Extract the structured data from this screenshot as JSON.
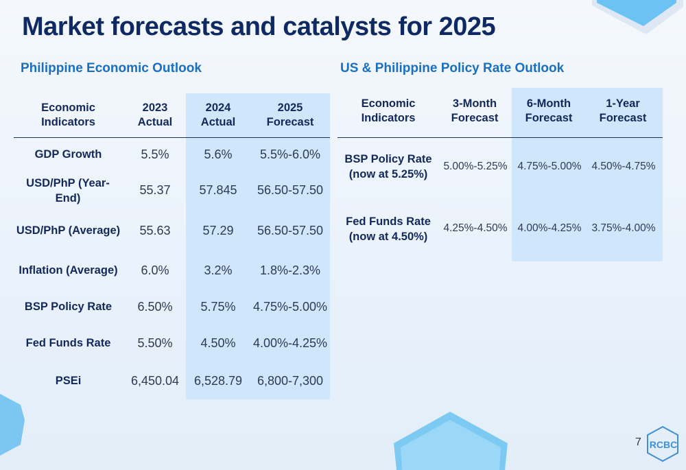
{
  "title": "Market forecasts and catalysts for 2025",
  "left_table": {
    "section_title": "Philippine Economic Outlook",
    "headers": [
      "Economic Indicators",
      "2023 Actual",
      "2024 Actual",
      "2025 Forecast"
    ],
    "rows": [
      {
        "label": "GDP Growth",
        "y2023": "5.5%",
        "y2024": "5.6%",
        "f2025": "5.5%-6.0%"
      },
      {
        "label": "USD/PhP (Year-End)",
        "y2023": "55.37",
        "y2024": "57.845",
        "f2025": "56.50-57.50"
      },
      {
        "label": "USD/PhP (Average)",
        "y2023": "55.63",
        "y2024": "57.29",
        "f2025": "56.50-57.50"
      },
      {
        "label": "Inflation (Average)",
        "y2023": "6.0%",
        "y2024": "3.2%",
        "f2025": "1.8%-2.3%"
      },
      {
        "label": "BSP Policy Rate",
        "y2023": "6.50%",
        "y2024": "5.75%",
        "f2025": "4.75%-5.00%"
      },
      {
        "label": "Fed Funds Rate",
        "y2023": "5.50%",
        "y2024": "4.50%",
        "f2025": "4.00%-4.25%"
      },
      {
        "label": "PSEi",
        "y2023": "6,450.04",
        "y2024": "6,528.79",
        "f2025": "6,800-7,300"
      }
    ]
  },
  "right_table": {
    "section_title": "US & Philippine Policy Rate Outlook",
    "headers": [
      "Economic Indicators",
      "3-Month Forecast",
      "6-Month Forecast",
      "1-Year Forecast"
    ],
    "rows": [
      {
        "label": "BSP Policy Rate (now at 5.25%)",
        "m3": "5.00%-5.25%",
        "m6": "4.75%-5.00%",
        "y1": "4.50%-4.75%"
      },
      {
        "label": "Fed Funds Rate (now at 4.50%)",
        "m3": "4.25%-4.50%",
        "m6": "4.00%-4.25%",
        "y1": "3.75%-4.00%"
      }
    ]
  },
  "footer": {
    "page_number": "7",
    "logo_text": "RCBC"
  },
  "colors": {
    "title": "#0f2a63",
    "section": "#1a6fc0",
    "highlight": "#cfe6fb",
    "logo": "#3f8fd6"
  }
}
